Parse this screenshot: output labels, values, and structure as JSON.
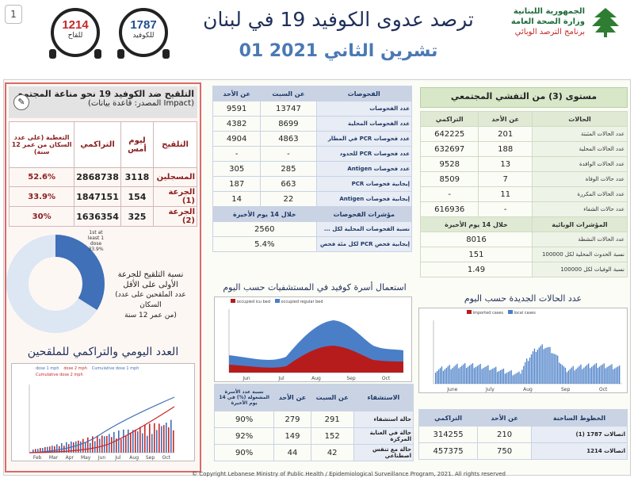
{
  "page_number": "1",
  "hotlines": [
    {
      "number": "1214",
      "label": "للقاح",
      "color": "#c62828"
    },
    {
      "number": "1787",
      "label": "للكوفيد",
      "color": "#1f4e8c"
    }
  ],
  "title": "ترصد عدوى الكوفيد 19 في لبنان",
  "date": "01 تشرين الثاني 2021",
  "logo": {
    "line1": "الجمهورية اللبنانية",
    "line2": "وزارة الصحة العامة",
    "line3": "برنامج الترصد الوبائي"
  },
  "vaccination": {
    "title": "التلقيح ضد الكوفيد 19 نحو مناعة المجتمع",
    "source": "(المصدر: قاعدة بيانات Impact)",
    "headers": [
      "التلقيح",
      "ليوم أمس",
      "التراكمي",
      "التغطية (على عدد السكان من عمر 12 سنة)"
    ],
    "rows": [
      {
        "label": "المسجلين",
        "day": "3118",
        "cum": "2868738",
        "pct": "52.6%"
      },
      {
        "label": "الجرعة (1)",
        "day": "154",
        "cum": "1847151",
        "pct": "33.9%"
      },
      {
        "label": "الجرعة (2)",
        "day": "325",
        "cum": "1636354",
        "pct": "30%"
      }
    ],
    "donut": {
      "value_pct": 33.9,
      "label": "1st at least 1 dose 33.9%",
      "colors": [
        "#3f70b8",
        "#2f5a99"
      ]
    },
    "donut_text": {
      "line1": "نسبة التلقيح للجرعة",
      "line2": "الأولى على الأقل",
      "line3": "(عدد الملقحين على عدد السكان",
      "line4": "من عمر 12 سنة)"
    },
    "bar_title": "العدد اليومي والتراكمي للملقحين",
    "bar_legend": [
      "dose 1 mph",
      "dose 2 mph",
      "Cumulative dose 1 mph",
      "Cumulative dose 2 mph"
    ],
    "bar_months": [
      "Feb",
      "Mar",
      "Apr",
      "May",
      "Jun",
      "Jul",
      "Aug",
      "Sep",
      "Oct"
    ]
  },
  "tests": {
    "headers": [
      "الفحوصات",
      "عن السبت",
      "عن الأحد"
    ],
    "rows": [
      {
        "label": "عدد الفحوصات",
        "sat": "13747",
        "sun": "9591"
      },
      {
        "label": "عدد الفحوصات المحلية",
        "sat": "8699",
        "sun": "4382"
      },
      {
        "label": "عدد فحوصات PCR في المطار",
        "sat": "4863",
        "sun": "4904"
      },
      {
        "label": "عدد فحوصات PCR للحدود",
        "sat": "-",
        "sun": "-"
      },
      {
        "label": "عدد فحوصات Antigen",
        "sat": "285",
        "sun": "305"
      },
      {
        "label": "إيجابية فحوصات PCR",
        "sat": "663",
        "sun": "187"
      },
      {
        "label": "إيجابية فحوصات Antigen",
        "sat": "22",
        "sun": "14"
      }
    ],
    "ind_header": "مؤشرات الفحوصات",
    "ind_col": "خلال 14 يوم الأخيرة",
    "ind_rows": [
      {
        "label": "نسبة الفحوصات المحلية لكل ...",
        "val": "2560"
      },
      {
        "label": "إيجابية فحص PCR لكل مئة فحص",
        "val": "5.4%"
      }
    ]
  },
  "community": {
    "title": "مستوى (3) من التفشي المجتمعي",
    "headers": [
      "الحالات",
      "عن الأحد",
      "التراكمي"
    ],
    "rows": [
      {
        "label": "عدد الحالات المثبتة",
        "sun": "201",
        "cum": "642225"
      },
      {
        "label": "عدد الحالات المحلية",
        "sun": "188",
        "cum": "632697"
      },
      {
        "label": "عدد الحالات الوافدة",
        "sun": "13",
        "cum": "9528"
      },
      {
        "label": "عدد حالات الوفاة",
        "sun": "7",
        "cum": "8509"
      },
      {
        "label": "عدد الحالات المكررة",
        "sun": "11",
        "cum": "-"
      },
      {
        "label": "عدد حالات الشفاء",
        "sun": "-",
        "cum": "616936"
      }
    ],
    "ind_header": "المؤشرات الوبائية",
    "ind_col": "خلال 14 يوم الأخيرة",
    "ind_rows": [
      {
        "label": "عدد الحالات النشطة",
        "val": "8016"
      },
      {
        "label": "نسبة الحدوث المحلية لكل 100000",
        "val": "151"
      },
      {
        "label": "نسبة الوفيات لكل 100000",
        "val": "1.49"
      }
    ]
  },
  "hosp_chart": {
    "title": "استعمال أسرة كوفيد في المستشفيات حسب اليوم",
    "legend": [
      "occupied icu bed",
      "occupied regular bed"
    ],
    "colors": [
      "#b71c1c",
      "#4a7fc8"
    ],
    "months": [
      "Jun",
      "Jul",
      "Aug",
      "Sep",
      "Oct"
    ]
  },
  "cases_chart": {
    "title": "عدد الحالات الجديدة حسب اليوم",
    "legend": [
      "imported cases",
      "local cases"
    ],
    "colors": [
      "#b71c1c",
      "#4a7fc8"
    ],
    "months": [
      "June",
      "July",
      "Aug",
      "Sep",
      "Oct"
    ]
  },
  "hospital_table": {
    "headers": [
      "الاستشفاء",
      "عن السبت",
      "عن الأحد",
      "نسبة عدد الأسرة المشغولة (%) في 14 يوم الأخيرة"
    ],
    "rows": [
      {
        "label": "حالة استشفاء",
        "sat": "291",
        "sun": "279",
        "pct": "90%"
      },
      {
        "label": "حالة في العناية المركزة",
        "sat": "152",
        "sun": "149",
        "pct": "92%"
      },
      {
        "label": "حالة مع تنفس اصطناعي",
        "sat": "42",
        "sun": "44",
        "pct": "90%"
      }
    ]
  },
  "hotline_table": {
    "headers": [
      "الخطوط الساخنة",
      "عن الأحد",
      "التراكمي"
    ],
    "rows": [
      {
        "label": "اتصالات 1787 (1)",
        "sun": "210",
        "cum": "314255"
      },
      {
        "label": "اتصالات 1214",
        "sun": "750",
        "cum": "457375"
      }
    ]
  },
  "footer": "© Copyright Lebanese Ministry of Public Health / Epidemiological Surveillance Program, 2021. All rights reserved"
}
